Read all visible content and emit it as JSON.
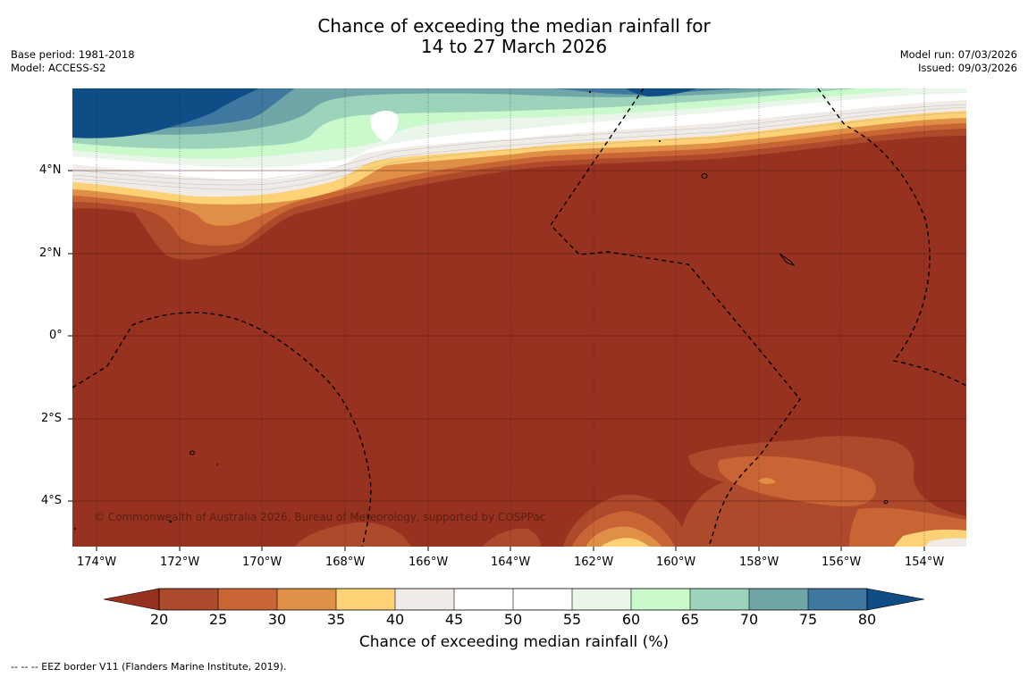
{
  "header": {
    "title_line1": "Chance of exceeding the median rainfall for",
    "title_line2": "14 to 27 March 2026",
    "base_period": "Base period: 1981-2018",
    "model": "Model: ACCESS-S2",
    "model_run": "Model run: 07/03/2026",
    "issued": "Issued: 09/03/2026"
  },
  "map": {
    "lat_labels": [
      "4°N",
      "2°N",
      "0°",
      "2°S",
      "4°S"
    ],
    "lon_labels": [
      "174°W",
      "172°W",
      "170°W",
      "168°W",
      "166°W",
      "164°W",
      "162°W",
      "160°W",
      "158°W",
      "156°W",
      "154°W"
    ],
    "copyright": "© Commonwealth of Australia 2026, Bureau of Meteorology, supported by COSPPac"
  },
  "colorbar": {
    "ticks": [
      "20",
      "25",
      "30",
      "35",
      "40",
      "45",
      "50",
      "55",
      "60",
      "65",
      "70",
      "75",
      "80"
    ],
    "title": "Chance of exceeding median rainfall (%)",
    "colors": [
      "#973220",
      "#ad4a2b",
      "#c96534",
      "#e09046",
      "#fdd176",
      "#f0ebe6",
      "#ffffff",
      "#ffffff",
      "#eaf6ea",
      "#caf9cc",
      "#9ed3bb",
      "#70a6a7",
      "#3e77a0",
      "#0f4d86"
    ]
  },
  "footer": {
    "legend": "--  --  -- EEZ border V11 (Flanders Marine Institute, 2019)."
  }
}
